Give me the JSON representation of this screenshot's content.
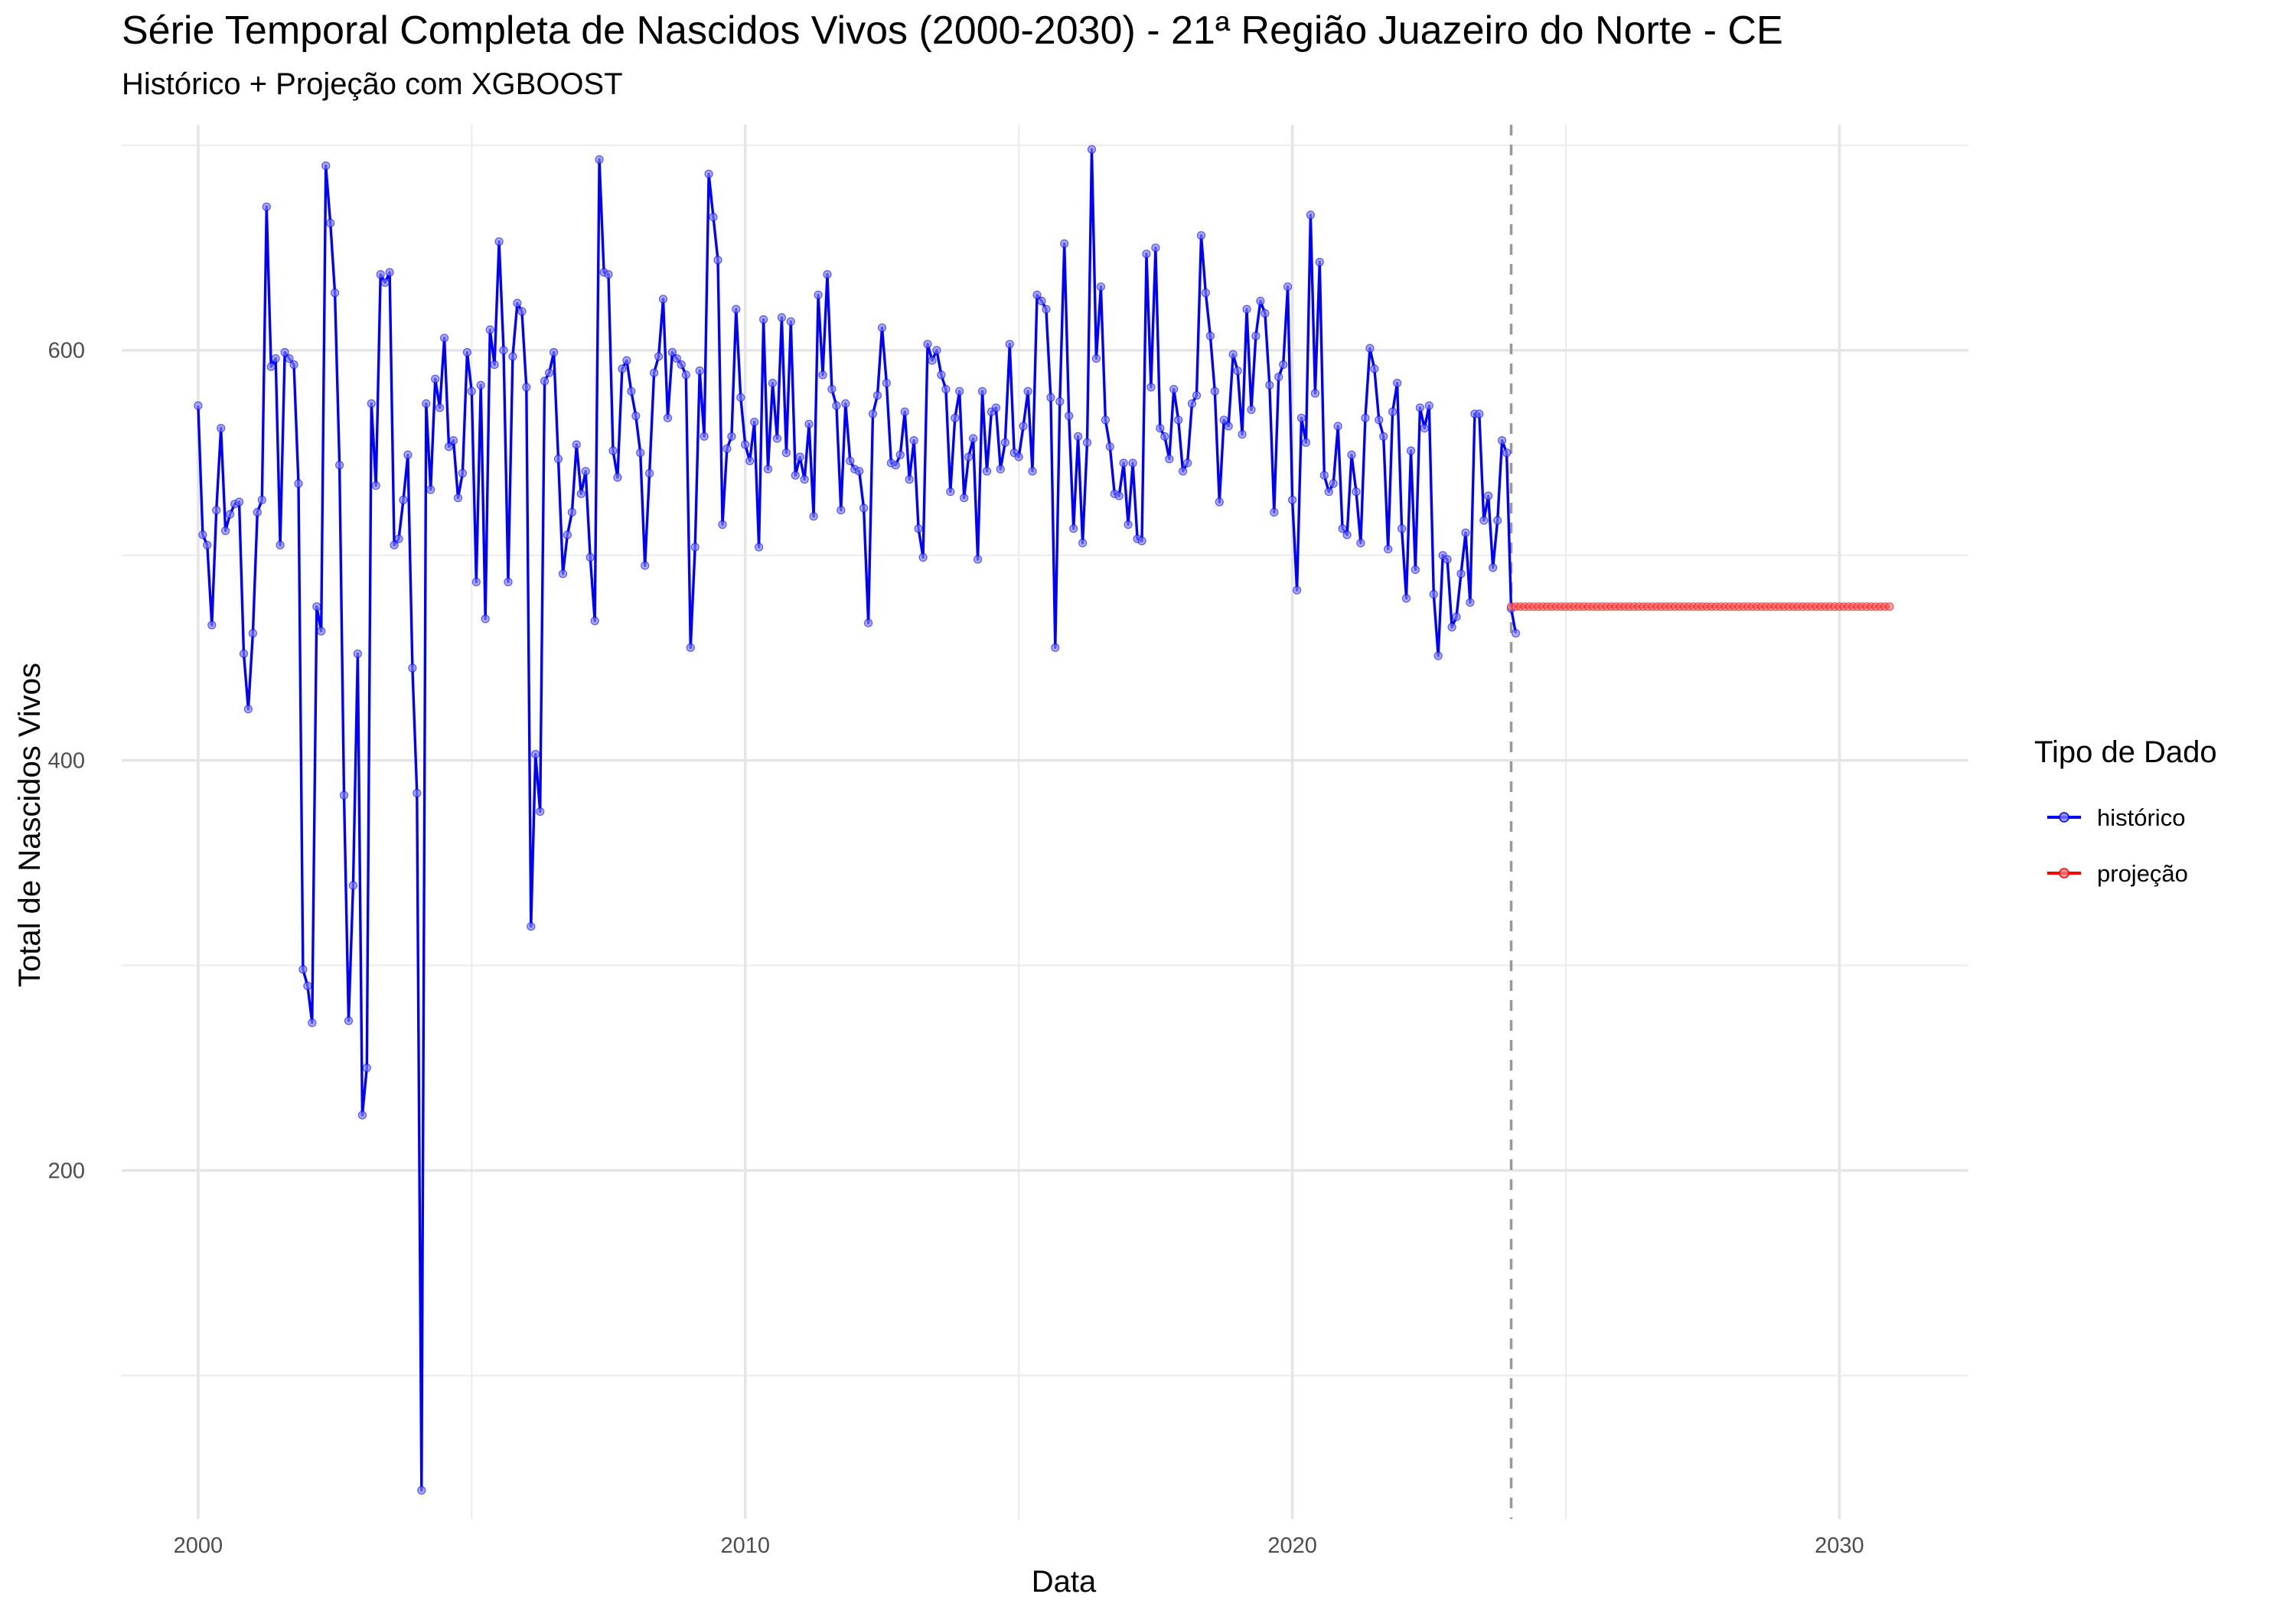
{
  "chart_data": {
    "type": "line",
    "title": "Série Temporal Completa de Nascidos Vivos (2000-2030) -  21ª Região Juazeiro do Norte - CE",
    "subtitle": "Histórico + Projeção com XGBOOST",
    "xlabel": "Data",
    "ylabel": "Total de Nascidos Vivos",
    "x_axis": {
      "type": "date",
      "range": [
        "1998-08-08",
        "2032-05-10"
      ],
      "ticks": [
        "2000",
        "2010",
        "2020",
        "2030"
      ]
    },
    "y_axis": {
      "range": [
        30,
        710
      ],
      "ticks": [
        200,
        400,
        600
      ]
    },
    "grid": true,
    "reference_line": {
      "x": "2024-01-01",
      "style": "dashed",
      "color": "#999999"
    },
    "legend": {
      "title": "Tipo de Dado",
      "position": "right",
      "entries": [
        {
          "label": "histórico",
          "color": "#0000ff"
        },
        {
          "label": "projeção",
          "color": "#ff0000"
        }
      ]
    },
    "series": [
      {
        "name": "histórico",
        "color": "#0000ff",
        "start": "2000-01",
        "frequency": "monthly",
        "values": [
          573,
          510,
          505,
          466,
          522,
          562,
          512,
          520,
          525,
          526,
          452,
          425,
          462,
          521,
          527,
          670,
          592,
          596,
          505,
          599,
          596,
          593,
          535,
          298,
          290,
          272,
          475,
          463,
          690,
          662,
          628,
          544,
          383,
          273,
          339,
          452,
          227,
          250,
          574,
          534,
          637,
          633,
          638,
          505,
          508,
          527,
          549,
          445,
          384,
          44,
          574,
          532,
          586,
          572,
          606,
          553,
          556,
          528,
          540,
          599,
          580,
          487,
          583,
          469,
          610,
          593,
          653,
          600,
          487,
          597,
          623,
          619,
          582,
          319,
          403,
          375,
          585,
          589,
          599,
          547,
          491,
          510,
          521,
          554,
          530,
          541,
          499,
          468,
          693,
          638,
          637,
          551,
          538,
          591,
          595,
          580,
          568,
          550,
          495,
          540,
          589,
          597,
          625,
          567,
          599,
          596,
          593,
          588,
          455,
          504,
          590,
          558,
          686,
          665,
          644,
          515,
          552,
          558,
          620,
          577,
          554,
          546,
          565,
          504,
          615,
          542,
          584,
          557,
          616,
          550,
          614,
          539,
          548,
          537,
          564,
          519,
          627,
          588,
          637,
          581,
          573,
          522,
          574,
          546,
          542,
          541,
          523,
          467,
          569,
          578,
          611,
          584,
          545,
          544,
          549,
          570,
          537,
          556,
          513,
          499,
          603,
          595,
          600,
          588,
          581,
          531,
          567,
          580,
          528,
          548,
          557,
          498,
          580,
          541,
          570,
          572,
          542,
          555,
          603,
          550,
          548,
          563,
          580,
          541,
          627,
          624,
          620,
          577,
          455,
          575,
          652,
          568,
          513,
          558,
          506,
          555,
          698,
          596,
          631,
          566,
          553,
          530,
          529,
          545,
          515,
          545,
          508,
          507,
          647,
          582,
          650,
          562,
          558,
          547,
          581,
          566,
          541,
          545,
          574,
          578,
          656,
          628,
          607,
          580,
          526,
          566,
          563,
          598,
          590,
          559,
          620,
          571,
          607,
          624,
          618,
          583,
          521,
          587,
          593,
          631,
          527,
          483,
          567,
          555,
          666,
          579,
          643,
          539,
          531,
          535,
          563,
          513,
          510,
          549,
          531,
          506,
          567,
          601,
          591,
          566,
          558,
          503,
          570,
          584,
          513,
          479,
          551,
          493,
          572,
          562,
          573,
          481,
          451,
          500,
          498,
          465,
          470,
          491,
          511,
          477,
          569,
          569,
          517,
          529,
          494,
          517,
          556,
          550,
          474,
          462
        ]
      },
      {
        "name": "projeção",
        "color": "#ff0000",
        "start": "2024-01",
        "frequency": "monthly",
        "values": [
          475,
          475,
          475,
          475,
          475,
          475,
          475,
          475,
          475,
          475,
          475,
          475,
          475,
          475,
          475,
          475,
          475,
          475,
          475,
          475,
          475,
          475,
          475,
          475,
          475,
          475,
          475,
          475,
          475,
          475,
          475,
          475,
          475,
          475,
          475,
          475,
          475,
          475,
          475,
          475,
          475,
          475,
          475,
          475,
          475,
          475,
          475,
          475,
          475,
          475,
          475,
          475,
          475,
          475,
          475,
          475,
          475,
          475,
          475,
          475,
          475,
          475,
          475,
          475,
          475,
          475,
          475,
          475,
          475,
          475,
          475,
          475,
          475,
          475,
          475,
          475,
          475,
          475,
          475,
          475,
          475,
          475,
          475,
          475
        ]
      }
    ]
  }
}
